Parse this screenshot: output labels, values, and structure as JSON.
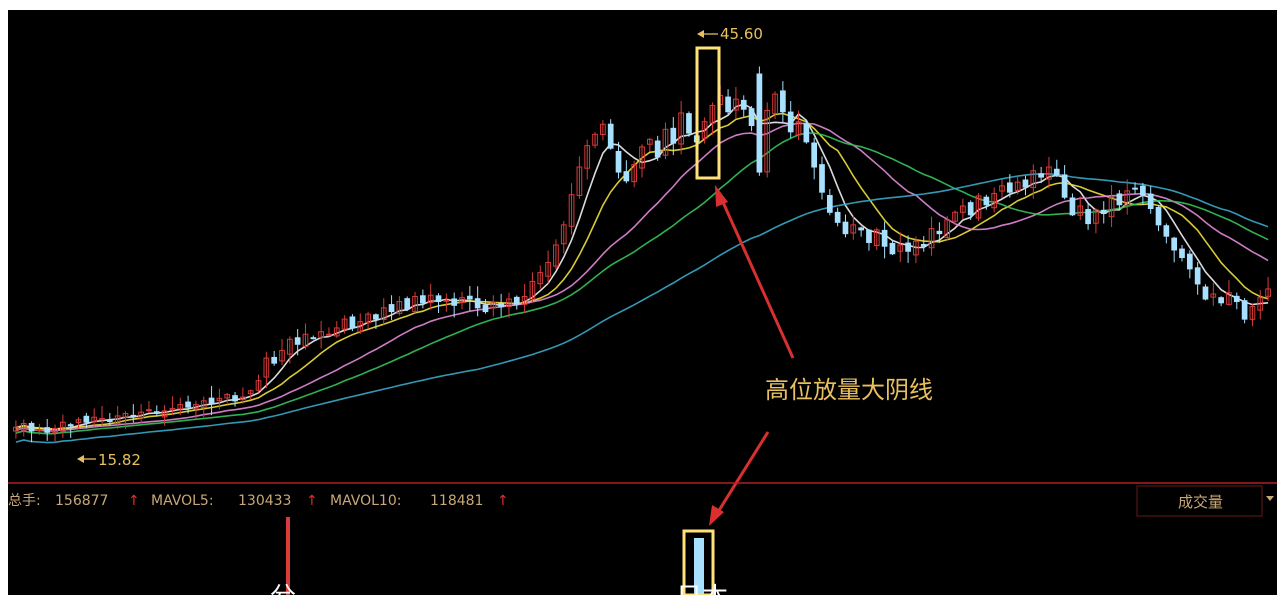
{
  "chart_data": {
    "type": "candlestick",
    "title": "",
    "colors": {
      "background": "#000000",
      "up": "#d83a3a",
      "down": "#a8e0ff",
      "ma5": "#f2f2f2",
      "ma10": "#f0e03a",
      "ma20": "#e28ad8",
      "ma30": "#35c35a",
      "ma60": "#3aa8c8",
      "annotation": "#e8c060",
      "highlight_box": "#ffe27a",
      "arrow": "#d83030",
      "panel_text": "#c8a878",
      "separator": "#b02020"
    },
    "price_axis": {
      "min": 13.5,
      "max": 48.5
    },
    "markers": {
      "high_label": "45.60",
      "high_value": 45.6,
      "low_label": "15.82",
      "low_value": 15.82
    },
    "annotation": "高位放量大阴线",
    "volume_panel": {
      "total_label": "总手:",
      "total_value": "156877",
      "mavol5_label": "MAVOL5:",
      "mavol5_value": "130433",
      "mavol10_label": "MAVOL10:",
      "mavol10_value": "118481",
      "selector_label": "成交量",
      "partial_glyphs": [
        "兮",
        "日本"
      ]
    },
    "closes": [
      16.9,
      17.2,
      16.6,
      16.7,
      16.5,
      16.8,
      17.3,
      17.0,
      17.5,
      17.3,
      17.7,
      17.6,
      17.4,
      17.8,
      18.0,
      17.8,
      18.1,
      18.3,
      18.0,
      18.2,
      18.4,
      18.7,
      18.5,
      18.7,
      19.0,
      18.8,
      19.2,
      19.5,
      19.0,
      19.3,
      19.8,
      20.6,
      22.4,
      22.0,
      23.0,
      23.9,
      23.5,
      24.3,
      24.0,
      24.5,
      24.3,
      24.8,
      25.5,
      24.8,
      25.3,
      25.9,
      25.5,
      26.4,
      26.1,
      26.9,
      26.3,
      27.3,
      26.8,
      27.4,
      26.9,
      27.0,
      26.6,
      27.2,
      27.1,
      26.4,
      26.1,
      26.8,
      26.5,
      27.1,
      26.7,
      27.3,
      28.5,
      29.2,
      30.0,
      31.4,
      33.0,
      35.4,
      37.6,
      39.3,
      40.2,
      41.0,
      39.1,
      37.2,
      36.5,
      37.8,
      39.2,
      39.8,
      38.4,
      40.6,
      39.5,
      41.9,
      40.3,
      39.6,
      41.2,
      42.5,
      43.3,
      42.0,
      43.0,
      42.2,
      40.9,
      37.2,
      42.1,
      43.4,
      42.0,
      40.4,
      41.2,
      39.6,
      37.6,
      35.6,
      34.0,
      33.2,
      32.3,
      33.0,
      32.6,
      31.6,
      32.6,
      31.3,
      30.7,
      31.4,
      30.9,
      31.7,
      31.3,
      32.7,
      32.3,
      33.4,
      34.0,
      34.5,
      33.8,
      35.3,
      34.6,
      35.5,
      36.1,
      35.6,
      36.4,
      36.0,
      37.3,
      36.8,
      37.6,
      37.0,
      35.2,
      33.8,
      34.5,
      33.1,
      34.2,
      33.9,
      35.2,
      34.6,
      35.7,
      35.9,
      35.4,
      34.3,
      33.0,
      32.1,
      31.0,
      30.4,
      29.5,
      28.3,
      27.1,
      27.5,
      26.8,
      27.6,
      26.9,
      25.5,
      26.5,
      27.2,
      27.9
    ],
    "ma_periods": [
      5,
      10,
      20,
      30,
      60
    ]
  }
}
